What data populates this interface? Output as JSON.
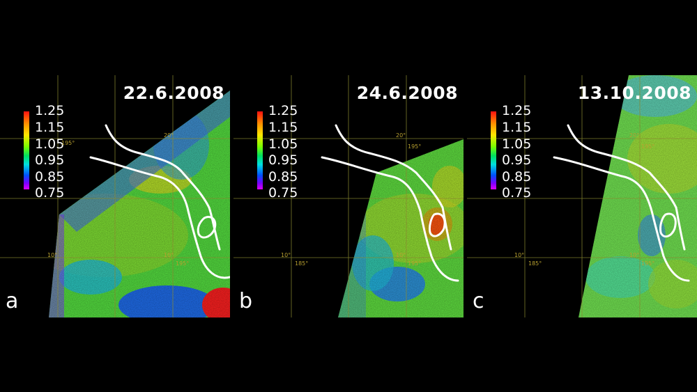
{
  "panels": [
    {
      "letter": "a",
      "date": "22.6.2008"
    },
    {
      "letter": "b",
      "date": "24.6.2008"
    },
    {
      "letter": "c",
      "date": "13.10.2008"
    }
  ],
  "colorbar": {
    "ticks": [
      "1.25",
      "1.15",
      "1.05",
      "0.95",
      "0.85",
      "0.75"
    ]
  },
  "grid_labels": [
    "20°",
    "195°",
    "10°",
    "185°"
  ],
  "colors": {
    "background": "#000000",
    "contour": "#ffffff",
    "grid": "#8a8a30"
  }
}
